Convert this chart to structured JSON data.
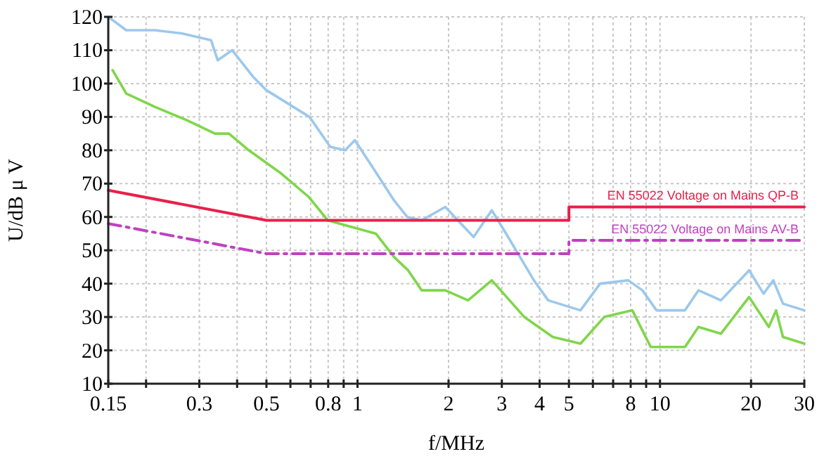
{
  "chart_data": {
    "type": "line",
    "xlabel": "f/MHz",
    "ylabel": "U/dB μ V",
    "log": "x",
    "grid": true,
    "xlim": [
      0.15,
      30
    ],
    "ylim": [
      10,
      120
    ],
    "xticks": [
      0.15,
      {
        "value": 0.2,
        "label": null
      },
      0.3,
      {
        "value": 0.4,
        "label": null
      },
      0.5,
      {
        "value": 0.6,
        "label": null
      },
      {
        "value": 0.7,
        "label": null
      },
      0.8,
      {
        "value": 0.9,
        "label": null
      },
      1,
      2,
      3,
      4,
      5,
      {
        "value": 6,
        "label": null
      },
      {
        "value": 7,
        "label": null
      },
      8,
      {
        "value": 9,
        "label": null
      },
      10,
      20,
      30
    ],
    "yticks": [
      10,
      20,
      30,
      40,
      50,
      60,
      70,
      80,
      90,
      100,
      110,
      120
    ],
    "series": [
      {
        "color": "#9cc8ec",
        "line_style": "solid",
        "x": [
          0.15,
          0.172,
          0.214,
          0.264,
          0.328,
          0.345,
          0.385,
          0.452,
          0.5,
          0.589,
          0.694,
          0.813,
          0.911,
          0.98,
          1.12,
          1.32,
          1.46,
          1.63,
          1.95,
          2.42,
          2.78,
          3.1,
          3.83,
          4.27,
          5.46,
          6.34,
          7.85,
          8.75,
          9.74,
          12.1,
          13.4,
          15.9,
          19.7,
          22,
          23.7,
          25.5,
          30
        ],
        "values": [
          120,
          116,
          116,
          115,
          113,
          107,
          110,
          102,
          98,
          94,
          90,
          81,
          80,
          83,
          75,
          65,
          60,
          59,
          63,
          54,
          62,
          55,
          41,
          35,
          32,
          40,
          41,
          38,
          32,
          32,
          38,
          35,
          44,
          37,
          41,
          34,
          32
        ]
      },
      {
        "color": "#7fd64a",
        "line_style": "solid",
        "x": [
          0.155,
          0.172,
          0.214,
          0.273,
          0.338,
          0.376,
          0.437,
          0.56,
          0.69,
          0.797,
          0.956,
          1.15,
          1.32,
          1.47,
          1.63,
          1.95,
          2.32,
          2.78,
          3.56,
          4.42,
          5.46,
          6.54,
          8.1,
          9.32,
          12.1,
          13.4,
          15.9,
          19.7,
          22.9,
          24.2,
          25.5,
          30
        ],
        "values": [
          104,
          97,
          93,
          89,
          85,
          85,
          80,
          73,
          66,
          59,
          57,
          55,
          48,
          44,
          38,
          38,
          35,
          41,
          30,
          24,
          22,
          30,
          32,
          21,
          21,
          27,
          25,
          36,
          27,
          32,
          24,
          22
        ]
      },
      {
        "name": "EN 55022 Voltage on Mains QP-B",
        "color": "#e8204a",
        "line_style": "solid",
        "x": [
          0.15,
          0.5,
          5,
          5,
          30
        ],
        "values": [
          68,
          59,
          59,
          63,
          63
        ]
      },
      {
        "name": "EN 55022 Voltage on Mains AV-B",
        "color": "#c040c0",
        "line_style": "dashed",
        "x": [
          0.15,
          0.5,
          5,
          5,
          30
        ],
        "values": [
          58,
          49,
          49,
          53,
          53
        ]
      }
    ]
  }
}
